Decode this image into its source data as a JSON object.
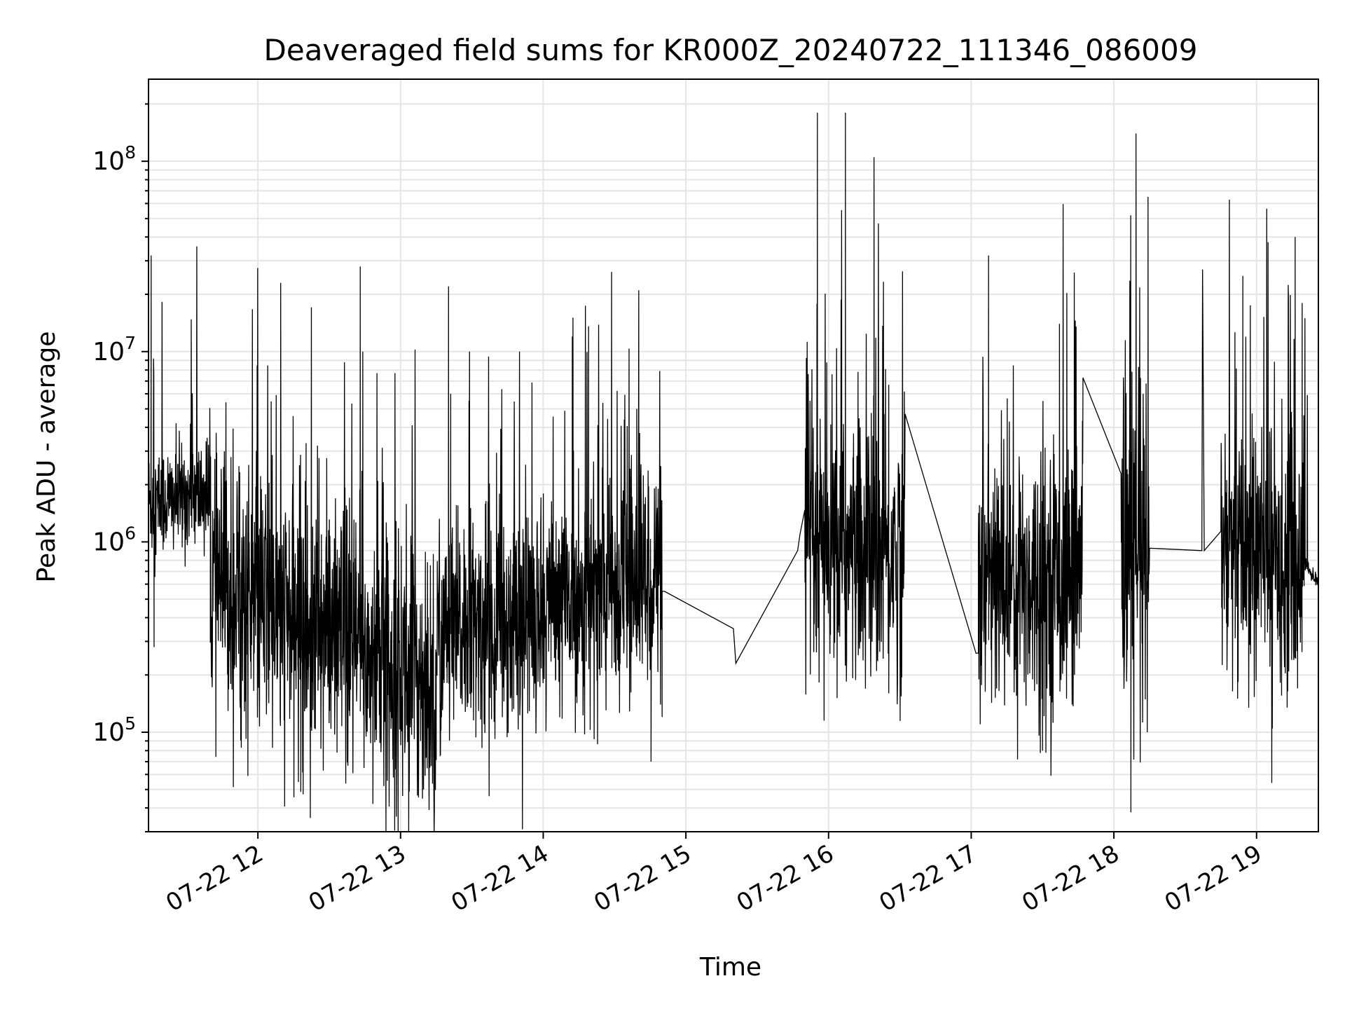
{
  "chart_data": {
    "type": "line",
    "title": "Deaveraged field sums for KR000Z_20240722_111346_086009",
    "xlabel": "Time",
    "ylabel": "Peak ADU - average",
    "yscale": "log",
    "ylim": [
      30000,
      270000000
    ],
    "xlim": [
      "2024-07-22 11:14",
      "2024-07-22 19:26"
    ],
    "grid": true,
    "line_color": "#000000",
    "grid_color": "#e5e5e5",
    "x_ticks": [
      {
        "t": "2024-07-22 12:00",
        "label": "07-22 12"
      },
      {
        "t": "2024-07-22 13:00",
        "label": "07-22 13"
      },
      {
        "t": "2024-07-22 14:00",
        "label": "07-22 14"
      },
      {
        "t": "2024-07-22 15:00",
        "label": "07-22 15"
      },
      {
        "t": "2024-07-22 16:00",
        "label": "07-22 16"
      },
      {
        "t": "2024-07-22 17:00",
        "label": "07-22 17"
      },
      {
        "t": "2024-07-22 18:00",
        "label": "07-22 18"
      },
      {
        "t": "2024-07-22 19:00",
        "label": "07-22 19"
      }
    ],
    "y_ticks": [
      {
        "value": 100000,
        "base": "10",
        "exp": "5"
      },
      {
        "value": 1000000,
        "base": "10",
        "exp": "6"
      },
      {
        "value": 10000000,
        "base": "10",
        "exp": "7"
      },
      {
        "value": 100000000,
        "base": "10",
        "exp": "8"
      }
    ],
    "series": [
      {
        "segments": [
          {
            "start": "2024-07-22 11:14",
            "end": "2024-07-22 11:40",
            "base": [
              1600000,
              1800000
            ],
            "sd": 0.15,
            "spikes": [
              [
                "2024-07-22 11:15",
                32000000
              ],
              [
                "2024-07-22 11:16",
                280000
              ],
              [
                "2024-07-22 11:18",
                1200000
              ]
            ]
          },
          {
            "start": "2024-07-22 11:40",
            "end": "2024-07-22 13:15",
            "base": [
              600000,
              180000
            ],
            "sd": 0.35,
            "spikes": [
              [
                "2024-07-22 12:25",
                3200000
              ],
              [
                "2024-07-22 12:43",
                28000000
              ],
              [
                "2024-07-22 12:44",
                10000000
              ],
              [
                "2024-07-22 12:48",
                42000
              ],
              [
                "2024-07-22 12:58",
                50000
              ],
              [
                "2024-07-22 12:20",
                3300000
              ],
              [
                "2024-07-22 11:52",
                2500000
              ]
            ]
          },
          {
            "start": "2024-07-22 13:15",
            "end": "2024-07-22 14:50",
            "base": [
              300000,
              700000
            ],
            "sd": 0.3,
            "spikes": [
              [
                "2024-07-22 13:20",
                22000000
              ],
              [
                "2024-07-22 13:21",
                6000000
              ],
              [
                "2024-07-22 13:29",
                10000000
              ],
              [
                "2024-07-22 13:50",
                10000000
              ],
              [
                "2024-07-22 14:12",
                12000000
              ],
              [
                "2024-07-22 14:40",
                21000000
              ],
              [
                "2024-07-22 14:39",
                5000000
              ],
              [
                "2024-07-22 14:45",
                70000
              ]
            ]
          },
          {
            "start": "2024-07-22 14:50",
            "end": "2024-07-22 14:51",
            "base": [
              550000,
              550000
            ],
            "sd": 0.0,
            "spikes": []
          },
          {
            "start": "2024-07-22 15:20",
            "end": "2024-07-22 15:21",
            "base": [
              350000,
              230000
            ],
            "sd": 0.0,
            "spikes": []
          },
          {
            "start": "2024-07-22 15:47",
            "end": "2024-07-22 15:48",
            "base": [
              900000,
              1100000
            ],
            "sd": 0.0,
            "spikes": []
          },
          {
            "start": "2024-07-22 15:50",
            "end": "2024-07-22 16:32",
            "base": [
              800000,
              900000
            ],
            "sd": 0.35,
            "spikes": [
              [
                "2024-07-22 15:55",
                180000000
              ],
              [
                "2024-07-22 16:07",
                180000000
              ],
              [
                "2024-07-22 16:19",
                105000000
              ],
              [
                "2024-07-22 16:05",
                9000000
              ],
              [
                "2024-07-22 15:58",
                115000
              ],
              [
                "2024-07-22 16:23",
                4700000
              ],
              [
                "2024-07-22 16:32",
                4700000
              ],
              [
                "2024-07-22 16:25",
                160000
              ]
            ]
          },
          {
            "start": "2024-07-22 17:02",
            "end": "2024-07-22 17:03",
            "base": [
              260000,
              260000
            ],
            "sd": 0.0,
            "spikes": []
          },
          {
            "start": "2024-07-22 17:03",
            "end": "2024-07-22 17:47",
            "base": [
              600000,
              700000
            ],
            "sd": 0.35,
            "spikes": [
              [
                "2024-07-22 17:07",
                32000000
              ],
              [
                "2024-07-22 17:37",
                14000000
              ],
              [
                "2024-07-22 17:43",
                26000000
              ],
              [
                "2024-07-22 17:30",
                80000
              ],
              [
                "2024-07-22 17:46",
                1300000
              ]
            ]
          },
          {
            "start": "2024-07-22 18:03",
            "end": "2024-07-22 18:15",
            "base": [
              900000,
              700000
            ],
            "sd": 0.5,
            "spikes": [
              [
                "2024-07-22 18:09",
                140000000
              ],
              [
                "2024-07-22 18:07",
                52000000
              ],
              [
                "2024-07-22 18:14",
                65000000
              ],
              [
                "2024-07-22 18:14",
                100000
              ],
              [
                "2024-07-22 18:04",
                230000
              ]
            ]
          },
          {
            "start": "2024-07-22 18:37",
            "end": "2024-07-22 18:38",
            "base": [
              900000,
              900000
            ],
            "sd": 0.0,
            "spikes": [
              [
                "2024-07-22 18:37",
                27000000
              ]
            ]
          },
          {
            "start": "2024-07-22 18:45",
            "end": "2024-07-22 19:20",
            "base": [
              900000,
              800000
            ],
            "sd": 0.35,
            "spikes": [
              [
                "2024-07-22 18:54",
                25000000
              ],
              [
                "2024-07-22 19:16",
                40000000
              ],
              [
                "2024-07-22 19:19",
                18000000
              ],
              [
                "2024-07-22 18:52",
                150000
              ],
              [
                "2024-07-22 19:17",
                170000
              ]
            ]
          },
          {
            "start": "2024-07-22 19:20",
            "end": "2024-07-22 19:26",
            "base": [
              780000,
              600000
            ],
            "sd": 0.02,
            "spikes": []
          }
        ]
      }
    ]
  }
}
